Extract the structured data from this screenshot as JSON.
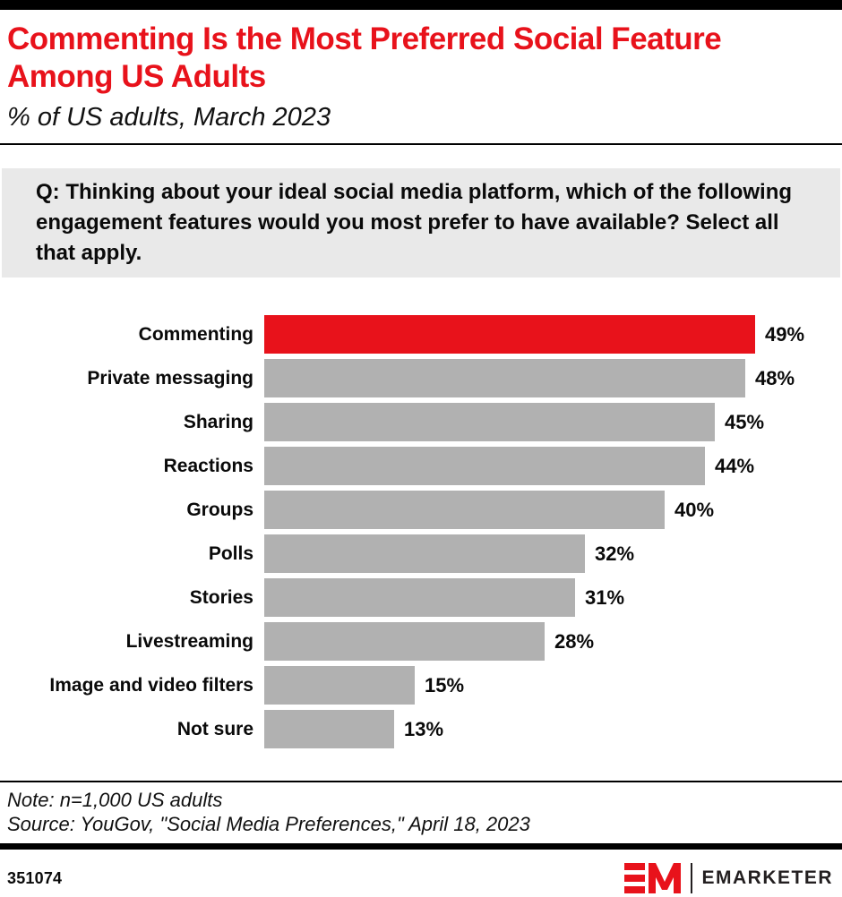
{
  "header": {
    "title": "Commenting Is the Most Preferred Social Feature Among US Adults",
    "subtitle": "% of US adults, March 2023"
  },
  "question": {
    "text": "Q: Thinking about your ideal social media platform, which of the following engagement features would you most prefer to have available? Select all that apply."
  },
  "chart_data": {
    "type": "bar",
    "orientation": "horizontal",
    "title": "Commenting Is the Most Preferred Social Feature Among US Adults",
    "subtitle": "% of US adults, March 2023",
    "categories": [
      "Commenting",
      "Private messaging",
      "Sharing",
      "Reactions",
      "Groups",
      "Polls",
      "Stories",
      "Livestreaming",
      "Image and video filters",
      "Not sure"
    ],
    "values": [
      49,
      48,
      45,
      44,
      40,
      32,
      31,
      28,
      15,
      13
    ],
    "value_suffix": "%",
    "highlight_index": 0,
    "xlim": [
      0,
      49
    ],
    "grid": false,
    "legend": "none",
    "data_labels": "outside-end"
  },
  "footer": {
    "note": "Note: n=1,000 US adults",
    "source": "Source: YouGov, \"Social Media Preferences,\" April 18, 2023",
    "chart_id": "351074",
    "brand": "EMARKETER"
  },
  "colors": {
    "accent_red": "#e8121b",
    "bar_gray": "#b1b1b1",
    "box_gray": "#e9e9e9",
    "black": "#000000"
  }
}
